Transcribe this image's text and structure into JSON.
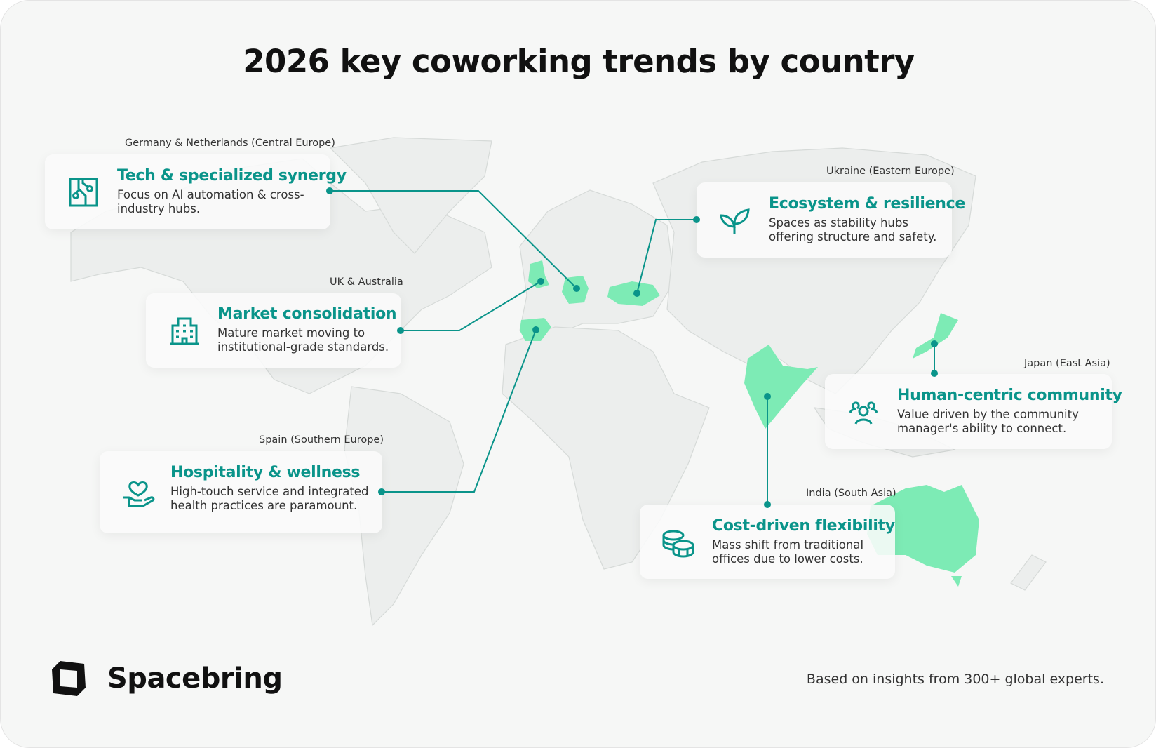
{
  "title": "2026 key coworking trends by country",
  "colors": {
    "accent": "#0a948a",
    "highlight": "#7debb5",
    "land": "#eceeed",
    "border": "#d9dcdb"
  },
  "highlighted_countries": [
    "United Kingdom",
    "Germany",
    "Netherlands",
    "Ukraine",
    "Spain",
    "India",
    "Japan",
    "Australia"
  ],
  "trends": [
    {
      "region": "Germany & Netherlands (Central Europe)",
      "title": "Tech & specialized synergy",
      "desc": "Focus on AI automation & cross-industry hubs.",
      "icon": "circuit-icon"
    },
    {
      "region": "UK & Australia",
      "title": "Market consolidation",
      "desc": "Mature market moving to institutional-grade standards.",
      "icon": "building-icon"
    },
    {
      "region": "Spain (Southern Europe)",
      "title": "Hospitality & wellness",
      "desc": "High-touch service and integrated health practices are paramount.",
      "icon": "hand-heart-icon"
    },
    {
      "region": "Ukraine (Eastern Europe)",
      "title": "Ecosystem & resilience",
      "desc": "Spaces as stability hubs offering structure and safety.",
      "icon": "leaves-icon"
    },
    {
      "region": "Japan (East Asia)",
      "title": "Human-centric community",
      "desc": "Value driven by the community manager's ability to connect.",
      "icon": "people-icon"
    },
    {
      "region": "India (South Asia)",
      "title": "Cost-driven flexibility",
      "desc": "Mass shift from traditional offices due to lower costs.",
      "icon": "coins-icon"
    }
  ],
  "brand": "Spacebring",
  "footer": "Based on insights from 300+ global experts."
}
